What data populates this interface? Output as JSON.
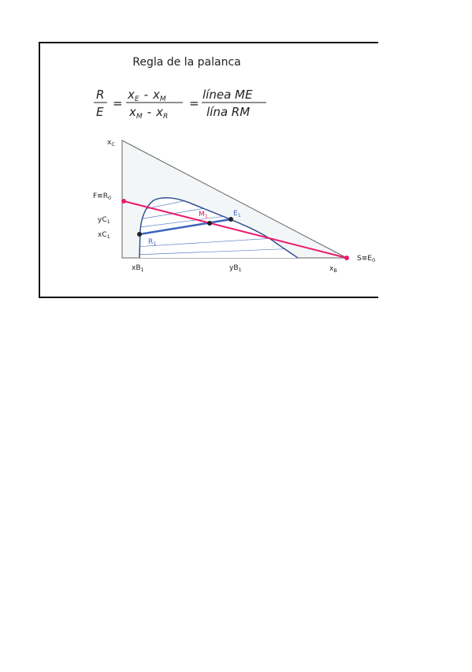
{
  "title": "Regla de la palanca",
  "formula": {
    "lhs_num": "R",
    "lhs_den": "E",
    "equals": [
      "=",
      "="
    ],
    "mid_num": {
      "a": "x",
      "a_sub": "E",
      "op": "-",
      "b": "x",
      "b_sub": "M"
    },
    "mid_den": {
      "a": "x",
      "a_sub": "M",
      "op": "-",
      "b": "x",
      "b_sub": "R"
    },
    "rhs_num": "línea ME",
    "rhs_den": "lína RM"
  },
  "labels": {
    "xc": {
      "text": "x",
      "sub": "C"
    },
    "f": {
      "text": "F≡R",
      "sub": "0"
    },
    "yc1": {
      "text": "yC",
      "sub": "1"
    },
    "xc1": {
      "text": "xC",
      "sub": "1"
    },
    "m1": {
      "text": "M",
      "sub": "1"
    },
    "e1": {
      "text": "E",
      "sub": "1"
    },
    "r1": {
      "text": "R",
      "sub": "1"
    },
    "s": {
      "text": "S≡E",
      "sub": "0"
    },
    "xb1": {
      "text": "xB",
      "sub": "1"
    },
    "yb1": {
      "text": "yB",
      "sub": "1"
    },
    "xb": {
      "text": "x",
      "sub": "B"
    }
  }
}
